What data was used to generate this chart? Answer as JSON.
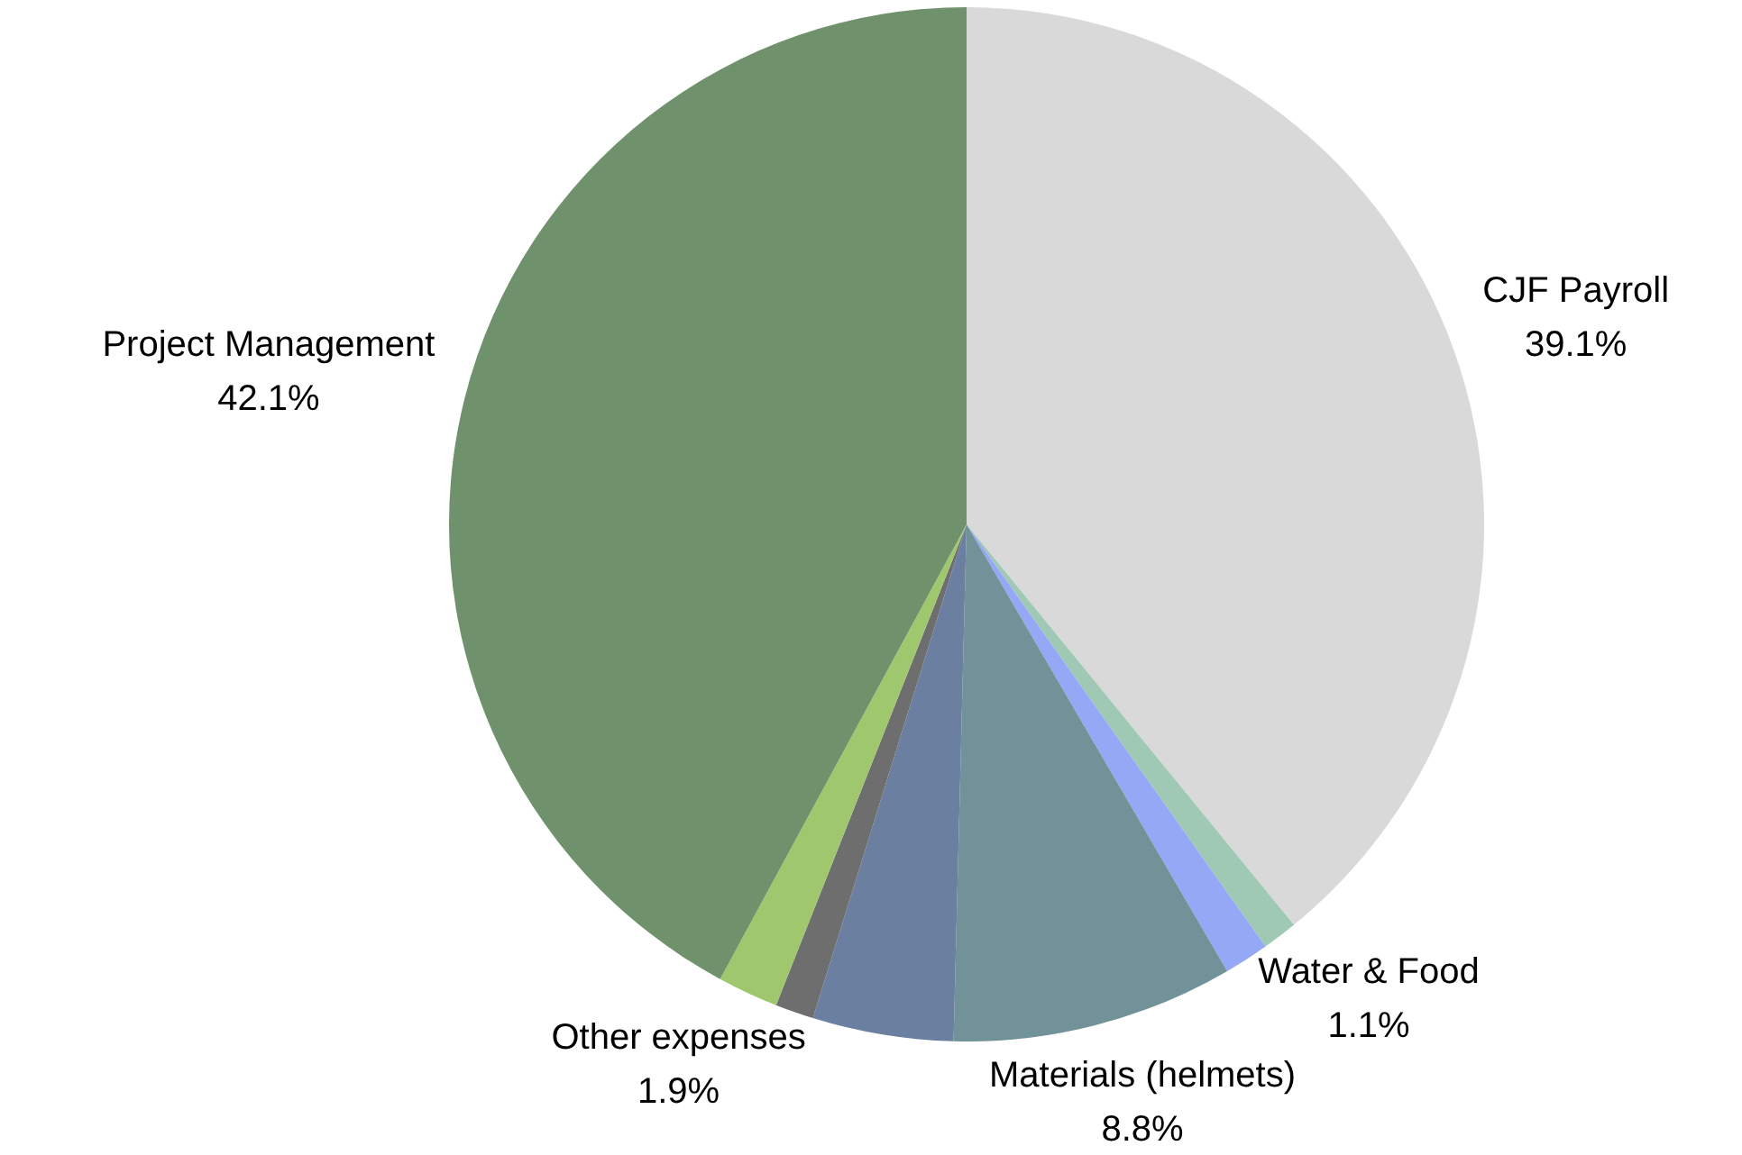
{
  "chart_data": {
    "type": "pie",
    "categories": [
      "CJF Payroll",
      "Water & Food",
      null,
      "Materials (helmets)",
      null,
      null,
      "Other expenses",
      "Project Management"
    ],
    "values": [
      39.1,
      1.1,
      1.4,
      8.8,
      4.4,
      1.2,
      1.9,
      42.1
    ],
    "value_labels": [
      "39.1%",
      "1.1%",
      null,
      "8.8%",
      null,
      null,
      "1.9%",
      "42.1%"
    ],
    "colors": [
      "#d9d9d9",
      "#9fc9b5",
      "#94a8f5",
      "#72929a",
      "#6b80a0",
      "#6e6e6e",
      "#9fc86e",
      "#6f916b"
    ],
    "legend": false
  }
}
